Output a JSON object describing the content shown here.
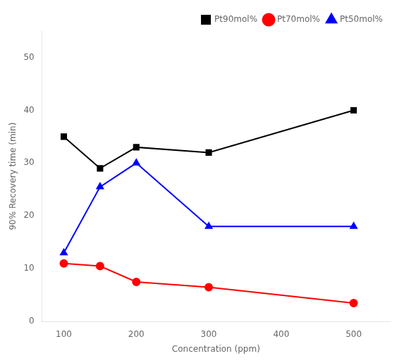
{
  "chart_data": {
    "type": "line",
    "x": [
      100,
      150,
      200,
      300,
      500
    ],
    "series": [
      {
        "name": "Pt90mol%",
        "color": "#000000",
        "marker": "square",
        "values": [
          35,
          29,
          33,
          32,
          40
        ]
      },
      {
        "name": "Pt70mol%",
        "color": "#ff0000",
        "marker": "circle",
        "values": [
          11,
          10.5,
          7.5,
          6.5,
          3.5
        ]
      },
      {
        "name": "Pt50mol%",
        "color": "#0000ff",
        "marker": "triangle",
        "values": [
          13,
          25.5,
          30,
          18,
          18
        ]
      }
    ],
    "xlabel": "Concentration (ppm)",
    "ylabel": "90% Recovery time (min)",
    "xlim": [
      70,
      550
    ],
    "ylim": [
      0,
      55
    ],
    "xticks": [
      100,
      200,
      300,
      400,
      500
    ],
    "yticks": [
      0,
      10,
      20,
      30,
      40,
      50
    ],
    "legend": "upper right",
    "grid": false
  }
}
